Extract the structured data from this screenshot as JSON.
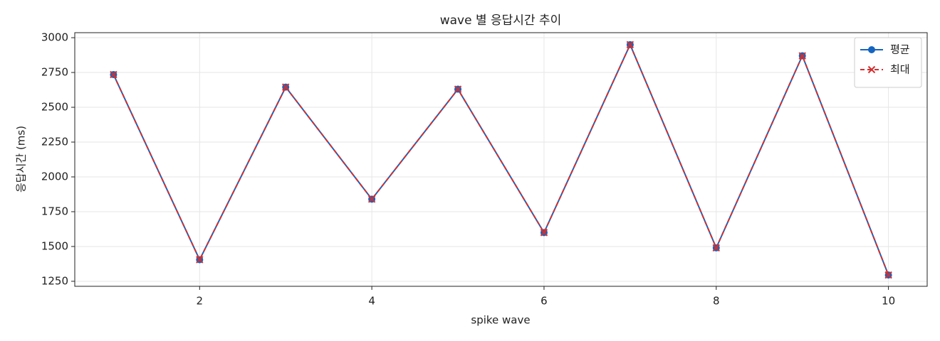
{
  "chart_data": {
    "type": "line",
    "title": "wave 별 응답시간 추이",
    "x_label": "spike wave",
    "y_label": "응답시간 (ms)",
    "x": [
      1,
      2,
      3,
      4,
      5,
      6,
      7,
      8,
      9,
      10
    ],
    "series": [
      {
        "name": "평균",
        "color": "#1565c0",
        "marker": "o",
        "dash": false,
        "values": [
          2735,
          1405,
          2645,
          1840,
          2630,
          1600,
          2950,
          1490,
          2870,
          1295
        ]
      },
      {
        "name": "최대",
        "color": "#d32f2f",
        "marker": "x",
        "dash": true,
        "values": [
          2735,
          1405,
          2645,
          1840,
          2630,
          1600,
          2950,
          1490,
          2870,
          1295
        ]
      }
    ],
    "xlim": [
      0.55,
      10.45
    ],
    "xticks": [
      2,
      4,
      6,
      8,
      10
    ],
    "ylim": [
      1214,
      3036
    ],
    "yticks": [
      1250,
      1500,
      1750,
      2000,
      2250,
      2500,
      2750,
      3000
    ],
    "grid": true,
    "legend": "upper right"
  }
}
